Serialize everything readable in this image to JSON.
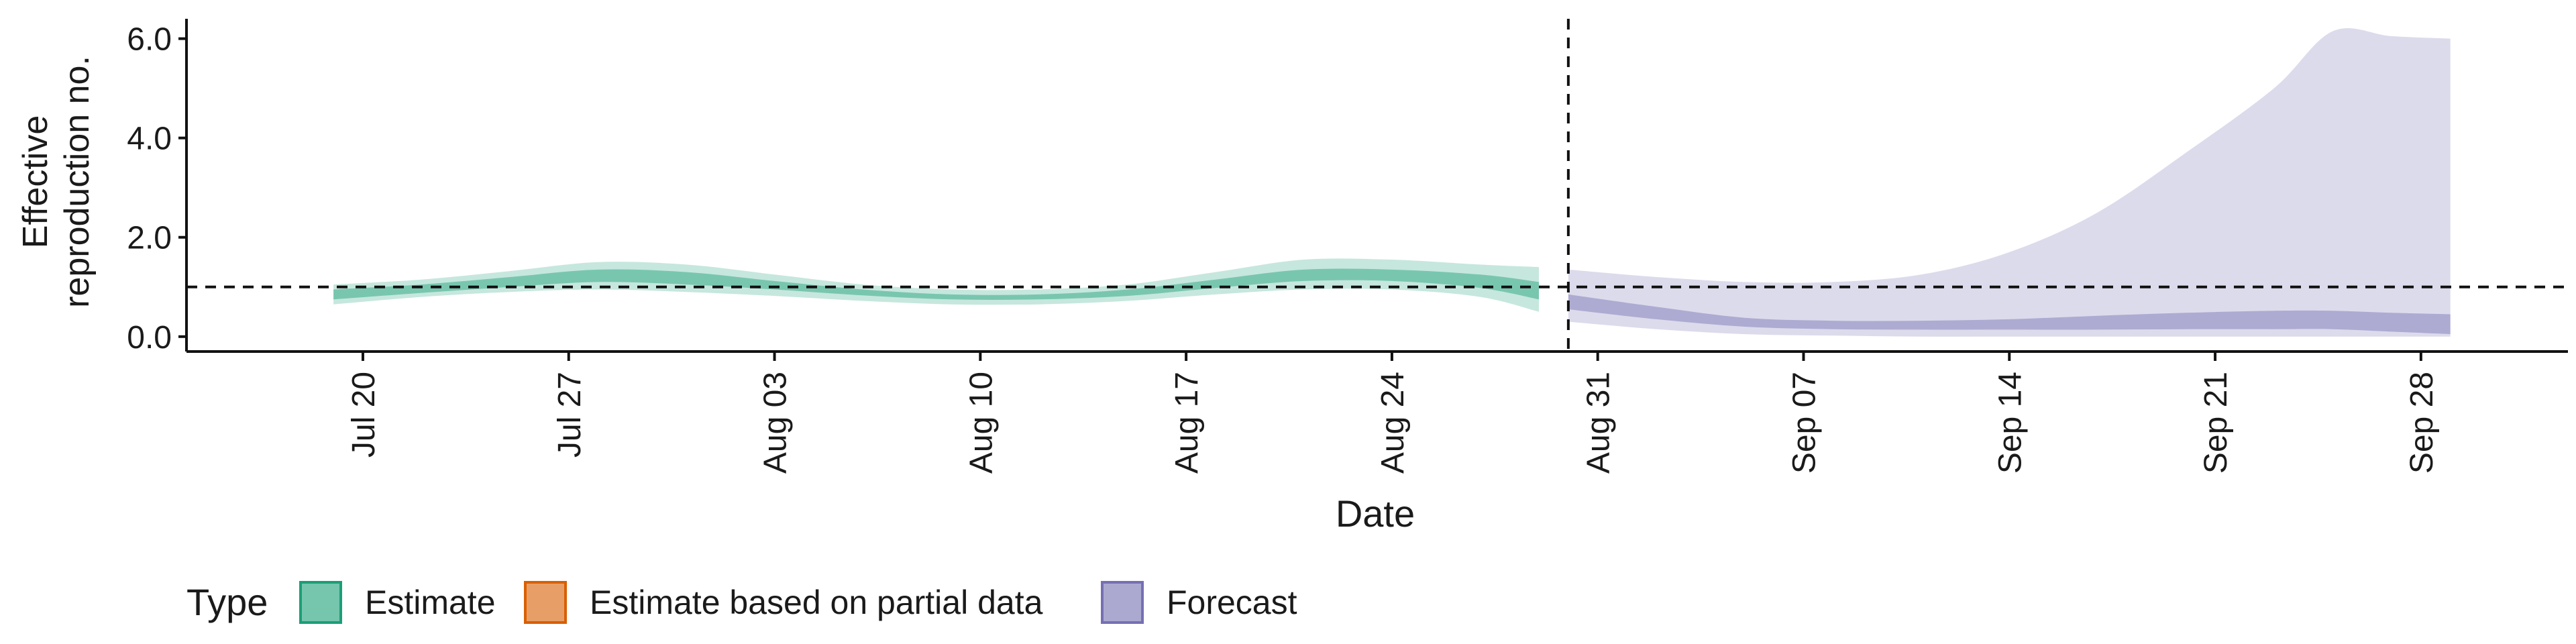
{
  "chart_data": {
    "type": "area",
    "title": "",
    "xlabel": "Date",
    "ylabel": "Effective reproduction no.",
    "ylabel_lines": [
      "Effective",
      "reproduction no."
    ],
    "x_range": [
      "2020-07-14",
      "2020-10-03"
    ],
    "ylim": [
      -0.3,
      6.4
    ],
    "y_ticks": [
      0.0,
      2.0,
      4.0,
      6.0
    ],
    "y_tick_labels": [
      "0.0",
      "2.0",
      "4.0",
      "6.0"
    ],
    "x_ticks": [
      "2020-07-20",
      "2020-07-27",
      "2020-08-03",
      "2020-08-10",
      "2020-08-17",
      "2020-08-24",
      "2020-08-31",
      "2020-09-07",
      "2020-09-14",
      "2020-09-21",
      "2020-09-28"
    ],
    "x_tick_labels": [
      "Jul 20",
      "Jul 27",
      "Aug 03",
      "Aug 10",
      "Aug 17",
      "Aug 24",
      "Aug 31",
      "Sep 07",
      "Sep 14",
      "Sep 21",
      "Sep 28"
    ],
    "reference_line": {
      "y": 1.0,
      "style": "dashed"
    },
    "vertical_line": {
      "x": "2020-08-30",
      "style": "dashed"
    },
    "grid": false,
    "legend": {
      "position": "bottom-left",
      "title": "Type",
      "items": [
        {
          "label": "Estimate",
          "color": "#1b9e77"
        },
        {
          "label": "Estimate based on partial data",
          "color": "#d95f02"
        },
        {
          "label": "Forecast",
          "color": "#7570b3"
        }
      ]
    },
    "series": [
      {
        "name": "Estimate",
        "color": "#1b9e77",
        "x": [
          "2020-07-19",
          "2020-07-22",
          "2020-07-25",
          "2020-07-28",
          "2020-07-31",
          "2020-08-03",
          "2020-08-06",
          "2020-08-09",
          "2020-08-12",
          "2020-08-15",
          "2020-08-18",
          "2020-08-21",
          "2020-08-24",
          "2020-08-27",
          "2020-08-29"
        ],
        "outer_lower": [
          0.65,
          0.8,
          0.9,
          0.95,
          0.9,
          0.82,
          0.72,
          0.65,
          0.65,
          0.72,
          0.85,
          0.95,
          0.95,
          0.8,
          0.5
        ],
        "outer_upper": [
          1.05,
          1.15,
          1.32,
          1.5,
          1.45,
          1.25,
          1.05,
          0.95,
          0.95,
          1.05,
          1.3,
          1.55,
          1.55,
          1.45,
          1.4
        ],
        "inner_lower": [
          0.75,
          0.88,
          1.0,
          1.1,
          1.05,
          0.95,
          0.83,
          0.75,
          0.75,
          0.82,
          0.98,
          1.12,
          1.12,
          0.98,
          0.75
        ],
        "inner_upper": [
          0.95,
          1.05,
          1.2,
          1.35,
          1.3,
          1.12,
          0.95,
          0.85,
          0.85,
          0.95,
          1.15,
          1.35,
          1.35,
          1.25,
          1.1
        ]
      },
      {
        "name": "Forecast",
        "color": "#7570b3",
        "x": [
          "2020-08-30",
          "2020-09-02",
          "2020-09-05",
          "2020-09-08",
          "2020-09-11",
          "2020-09-14",
          "2020-09-17",
          "2020-09-20",
          "2020-09-23",
          "2020-09-25",
          "2020-09-27",
          "2020-09-29"
        ],
        "outer_lower": [
          0.3,
          0.15,
          0.05,
          0.02,
          0.0,
          0.0,
          0.0,
          0.0,
          0.0,
          0.0,
          0.0,
          0.0
        ],
        "outer_upper": [
          1.35,
          1.2,
          1.1,
          1.1,
          1.25,
          1.7,
          2.5,
          3.7,
          5.0,
          6.15,
          6.05,
          6.0
        ],
        "inner_lower": [
          0.55,
          0.35,
          0.2,
          0.15,
          0.14,
          0.14,
          0.14,
          0.15,
          0.15,
          0.15,
          0.1,
          0.05
        ],
        "inner_upper": [
          0.85,
          0.6,
          0.38,
          0.32,
          0.32,
          0.35,
          0.42,
          0.48,
          0.52,
          0.52,
          0.48,
          0.45
        ]
      }
    ]
  }
}
